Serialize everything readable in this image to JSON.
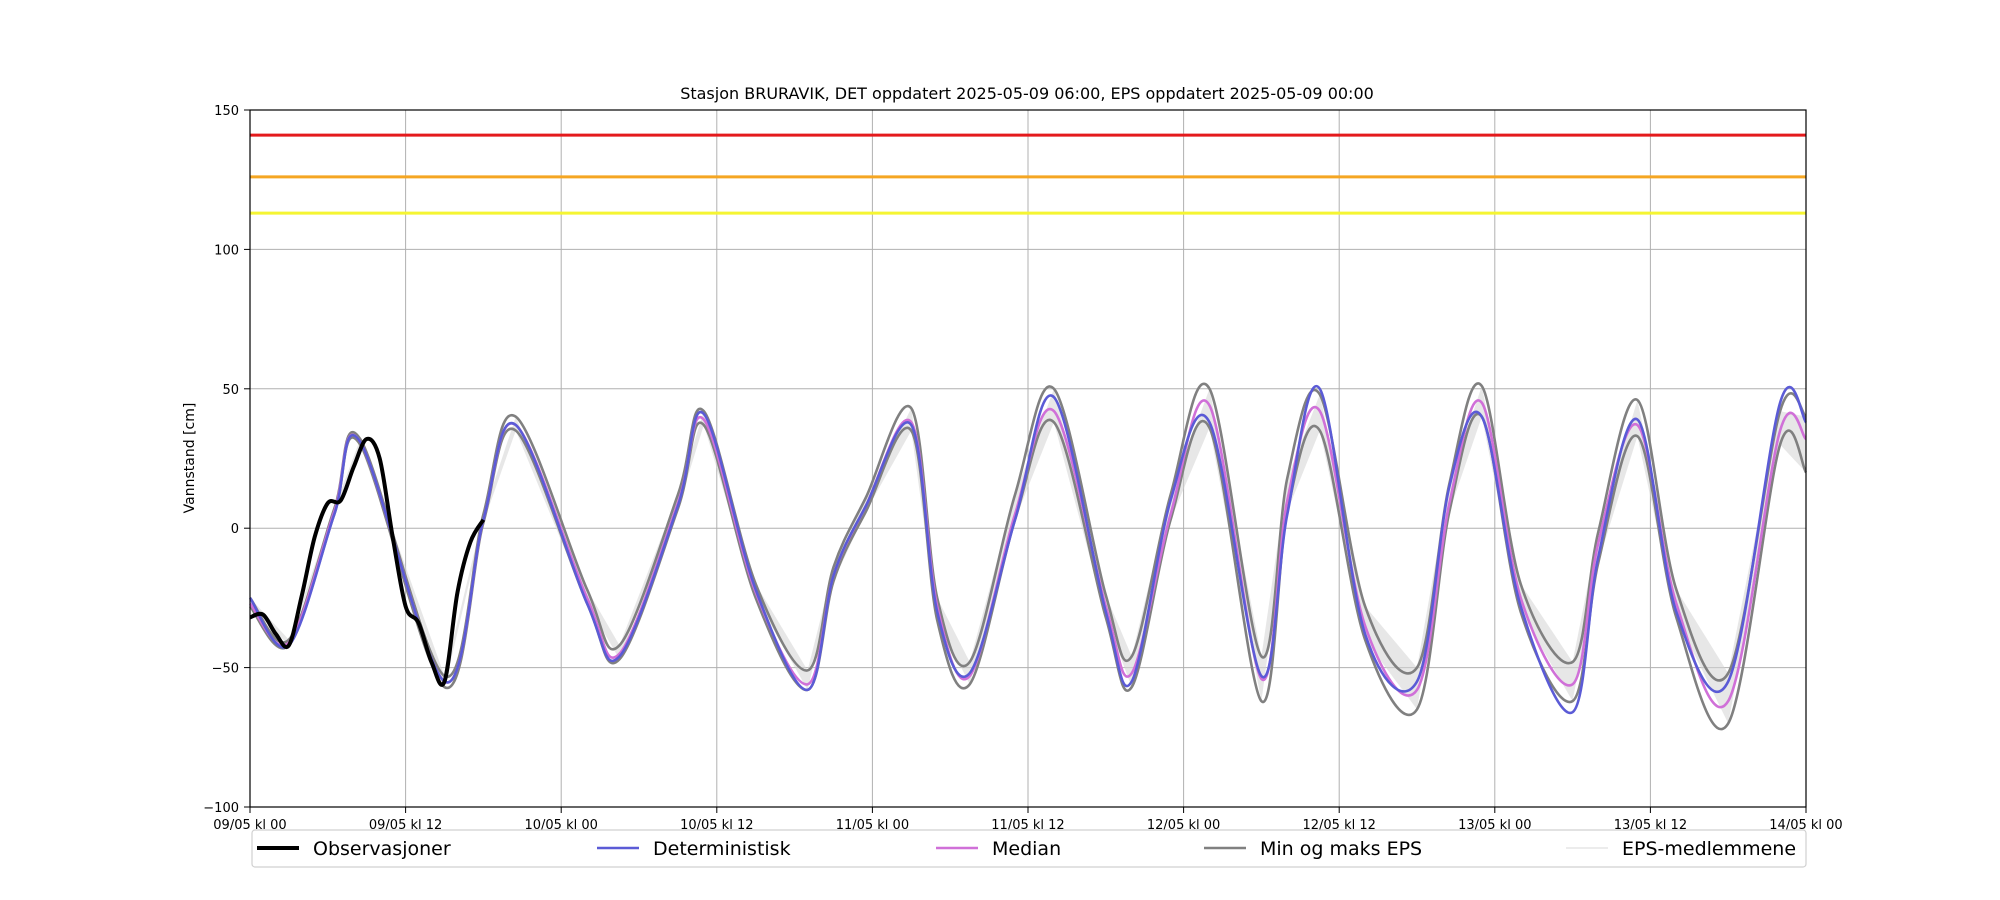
{
  "chart_data": {
    "type": "line",
    "title": "Stasjon BRURAVIK, DET oppdatert 2025-05-09 06:00, EPS oppdatert 2025-05-09 00:00",
    "xlabel": "",
    "ylabel": "Vannstand [cm]",
    "xlim": [
      0,
      120
    ],
    "ylim": [
      -100,
      150
    ],
    "x_unit": "hours since 09/05 kl 00",
    "grid": true,
    "legend_position": "bottom",
    "x_ticks": [
      {
        "value": 0,
        "label": "09/05 kl 00"
      },
      {
        "value": 12,
        "label": "09/05 kl 12"
      },
      {
        "value": 24,
        "label": "10/05 kl 00"
      },
      {
        "value": 36,
        "label": "10/05 kl 12"
      },
      {
        "value": 48,
        "label": "11/05 kl 00"
      },
      {
        "value": 60,
        "label": "11/05 kl 12"
      },
      {
        "value": 72,
        "label": "12/05 kl 00"
      },
      {
        "value": 84,
        "label": "12/05 kl 12"
      },
      {
        "value": 96,
        "label": "13/05 kl 00"
      },
      {
        "value": 108,
        "label": "13/05 kl 12"
      },
      {
        "value": 120,
        "label": "14/05 kl 00"
      }
    ],
    "y_ticks": [
      {
        "value": -100,
        "label": "−100"
      },
      {
        "value": -50,
        "label": "−50"
      },
      {
        "value": 0,
        "label": "0"
      },
      {
        "value": 50,
        "label": "50"
      },
      {
        "value": 100,
        "label": "100"
      },
      {
        "value": 150,
        "label": "150"
      }
    ],
    "thresholds": [
      {
        "value": 141,
        "color": "#e41a1c"
      },
      {
        "value": 126,
        "color": "#f5a623"
      },
      {
        "value": 113,
        "color": "#f5f532"
      }
    ],
    "colors": {
      "observations": "#000000",
      "deterministic": "#5b5bd6",
      "median": "#d070d8",
      "minmax": "#808080",
      "band": "#d3d3d3",
      "members": "#e4e4e4",
      "grid": "#b0b0b0"
    },
    "series": [
      {
        "name": "Observasjoner",
        "x": [
          0,
          1,
          2,
          3,
          4,
          5,
          6,
          7,
          8,
          9,
          10,
          11,
          12,
          13,
          14,
          15,
          16,
          17,
          18
        ],
        "y": [
          -32,
          -31,
          -38,
          -42,
          -24,
          -3,
          9,
          10,
          22,
          32,
          25,
          -3,
          -28,
          -34,
          -48,
          -55,
          -23,
          -5,
          3
        ]
      },
      {
        "name": "Deterministisk",
        "x": [
          0,
          3,
          6.5,
          8.5,
          15,
          18,
          20.5,
          26,
          28.5,
          33,
          35,
          39,
          43,
          45,
          47.5,
          51,
          53,
          55.5,
          59,
          62,
          66,
          68,
          71,
          74,
          78,
          80,
          82.5,
          86,
          90,
          92.5,
          95,
          98,
          102,
          104,
          107,
          110,
          114,
          118,
          120
        ],
        "y": [
          -25,
          -42,
          5,
          31,
          -55,
          3,
          37,
          -27,
          -46,
          8,
          41,
          -22,
          -58,
          -17,
          8,
          37,
          -30,
          -52,
          3,
          47,
          -30,
          -55,
          10,
          38,
          -53,
          5,
          50,
          -38,
          -55,
          15,
          40,
          -28,
          -66,
          -10,
          39,
          -30,
          -55,
          45,
          38
        ]
      },
      {
        "name": "Median",
        "x": [
          0,
          3,
          6.5,
          8.5,
          15,
          18,
          20.5,
          26,
          28.5,
          33,
          35,
          39,
          43,
          45,
          47.5,
          51,
          53,
          55.5,
          59,
          62,
          66,
          68,
          71,
          74,
          78,
          80,
          82.5,
          86,
          90,
          92.5,
          95,
          98,
          102,
          104,
          107,
          110,
          114,
          118,
          120
        ],
        "y": [
          -27,
          -41,
          6,
          31,
          -55,
          3,
          37,
          -25,
          -45,
          9,
          39,
          -23,
          -56,
          -17,
          8,
          38,
          -28,
          -53,
          5,
          42,
          -28,
          -52,
          5,
          44,
          -54,
          10,
          42,
          -35,
          -58,
          9,
          45,
          -25,
          -56,
          -5,
          37,
          -27,
          -62,
          35,
          32
        ]
      },
      {
        "name": "Min og maks EPS",
        "role": "min",
        "x": [
          0,
          3,
          6.5,
          8.5,
          15,
          18,
          20.5,
          26,
          28.5,
          33,
          35,
          39,
          43,
          45,
          47.5,
          51,
          53,
          55.5,
          59,
          62,
          66,
          68,
          71,
          74,
          78,
          80,
          82.5,
          86,
          90,
          92.5,
          95,
          98,
          102,
          104,
          107,
          110,
          114,
          118,
          120
        ],
        "y": [
          -28,
          -42,
          5,
          30,
          -57,
          2,
          35,
          -27,
          -47,
          7,
          37,
          -25,
          -58,
          -19,
          6,
          35,
          -33,
          -56,
          3,
          38,
          -32,
          -57,
          3,
          36,
          -62,
          6,
          35,
          -40,
          -65,
          6,
          40,
          -30,
          -62,
          -12,
          33,
          -32,
          -70,
          30,
          20
        ]
      },
      {
        "name": "Min og maks EPS",
        "role": "max",
        "x": [
          0,
          3,
          6.5,
          8.5,
          15,
          18,
          20.5,
          26,
          28.5,
          33,
          35,
          39,
          43,
          45,
          47.5,
          51,
          53,
          55.5,
          59,
          62,
          66,
          68,
          71,
          74,
          78,
          80,
          82.5,
          86,
          90,
          92.5,
          95,
          98,
          102,
          104,
          107,
          110,
          114,
          118,
          120
        ],
        "y": [
          -25,
          -40,
          7,
          32,
          -53,
          5,
          40,
          -22,
          -42,
          12,
          42,
          -20,
          -51,
          -14,
          11,
          43,
          -25,
          -48,
          12,
          50,
          -24,
          -46,
          12,
          50,
          -46,
          18,
          48,
          -28,
          -50,
          16,
          51,
          -20,
          -48,
          -1,
          46,
          -22,
          -52,
          42,
          40
        ]
      },
      {
        "name": "EPS-medlemmene",
        "x": [],
        "y": []
      }
    ],
    "legend": [
      "Observasjoner",
      "Deterministisk",
      "Median",
      "Min og maks EPS",
      "EPS-medlemmene"
    ]
  }
}
